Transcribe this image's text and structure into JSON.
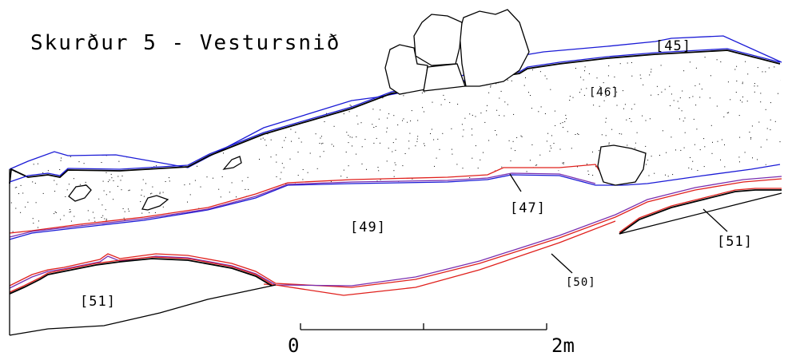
{
  "title": "Skurður 5 - Vestursnið",
  "layers": {
    "l45": "[45]",
    "l46": "[46]",
    "l47": "[47]",
    "l49": "[49]",
    "l50": "[50]",
    "l51_left": "[51]",
    "l51_right": "[51]"
  },
  "scale": {
    "start_label": "0",
    "end_label": "2m"
  },
  "colors": {
    "outline": "#000000",
    "blue_line": "#1a1ad6",
    "red_line": "#e0201c",
    "purple_line": "#7a2fb0",
    "stipple": "#000000"
  }
}
